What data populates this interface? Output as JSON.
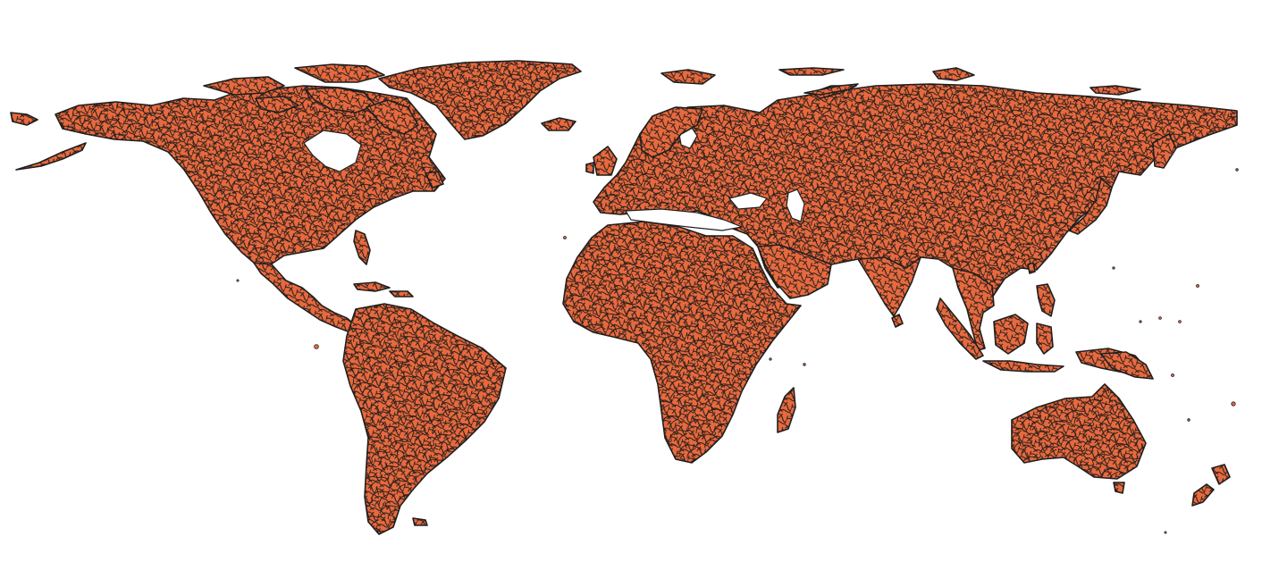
{
  "map": {
    "projection": "equirectangular",
    "layer": "world-admin-polygons",
    "theme": {
      "fill": "#e8693e",
      "stroke": "#1f1f1f",
      "background": "#ffffff"
    }
  }
}
